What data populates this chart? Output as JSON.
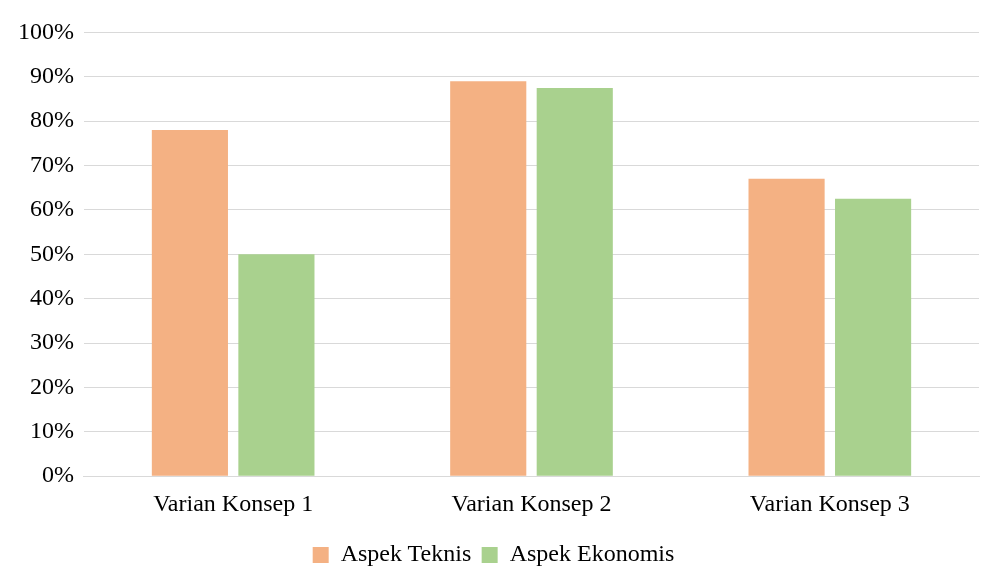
{
  "chart_data": {
    "type": "bar",
    "categories": [
      "Varian Konsep 1",
      "Varian Konsep 2",
      "Varian Konsep 3"
    ],
    "series": [
      {
        "name": "Aspek Teknis",
        "color": "#f4b183",
        "values": [
          78,
          89,
          67
        ]
      },
      {
        "name": "Aspek Ekonomis",
        "color": "#a9d18e",
        "values": [
          50,
          87.5,
          62.5
        ]
      }
    ],
    "ylim": [
      0,
      100
    ],
    "yticks": [
      {
        "value": 0,
        "label": "0%"
      },
      {
        "value": 10,
        "label": "10%"
      },
      {
        "value": 20,
        "label": "20%"
      },
      {
        "value": 30,
        "label": "30%"
      },
      {
        "value": 40,
        "label": "40%"
      },
      {
        "value": 50,
        "label": "50%"
      },
      {
        "value": 60,
        "label": "60%"
      },
      {
        "value": 70,
        "label": "70%"
      },
      {
        "value": 80,
        "label": "80%"
      },
      {
        "value": 90,
        "label": "90%"
      },
      {
        "value": 100,
        "label": "100%"
      }
    ],
    "grid": "y",
    "legend": "bottom"
  }
}
